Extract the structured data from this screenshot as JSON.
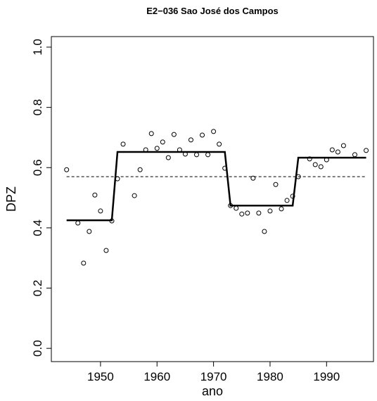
{
  "chart_data": {
    "type": "scatter",
    "title": "E2−036 Sao José dos Campos",
    "x_label": "ano",
    "y_label": "DPZ",
    "x": [
      1944,
      1946,
      1947,
      1948,
      1949,
      1950,
      1951,
      1952,
      1953,
      1954,
      1956,
      1957,
      1958,
      1959,
      1960,
      1961,
      1962,
      1963,
      1964,
      1965,
      1966,
      1967,
      1968,
      1969,
      1970,
      1971,
      1972,
      1973,
      1974,
      1975,
      1976,
      1977,
      1978,
      1979,
      1980,
      1981,
      1982,
      1983,
      1984,
      1985,
      1987,
      1988,
      1989,
      1990,
      1991,
      1992,
      1993,
      1995,
      1997
    ],
    "values": [
      0.593,
      0.416,
      0.283,
      0.388,
      0.509,
      0.456,
      0.325,
      0.423,
      0.563,
      0.678,
      0.507,
      0.593,
      0.659,
      0.713,
      0.664,
      0.685,
      0.633,
      0.71,
      0.659,
      0.645,
      0.692,
      0.643,
      0.708,
      0.643,
      0.72,
      0.678,
      0.598,
      0.474,
      0.465,
      0.446,
      0.449,
      0.565,
      0.449,
      0.388,
      0.456,
      0.544,
      0.463,
      0.491,
      0.505,
      0.57,
      0.629,
      0.61,
      0.603,
      0.626,
      0.659,
      0.652,
      0.673,
      0.643,
      0.657
    ],
    "color": "#000000",
    "step_line": {
      "x": [
        1944,
        1952,
        1953,
        1972,
        1973,
        1984,
        1985,
        1997
      ],
      "values": [
        0.425,
        0.425,
        0.652,
        0.652,
        0.474,
        0.474,
        0.633,
        0.633
      ]
    },
    "mean_line": 0.57,
    "xlim": [
      1941.3,
      1998.3
    ],
    "xticks": [
      1950,
      1960,
      1970,
      1980,
      1990
    ],
    "ylim": [
      -0.044,
      1.035
    ],
    "yticks": [
      {
        "value": 0,
        "label": "0.0"
      },
      0.2,
      0.4,
      0.6,
      0.8,
      {
        "value": 1,
        "label": "1.0"
      }
    ]
  }
}
